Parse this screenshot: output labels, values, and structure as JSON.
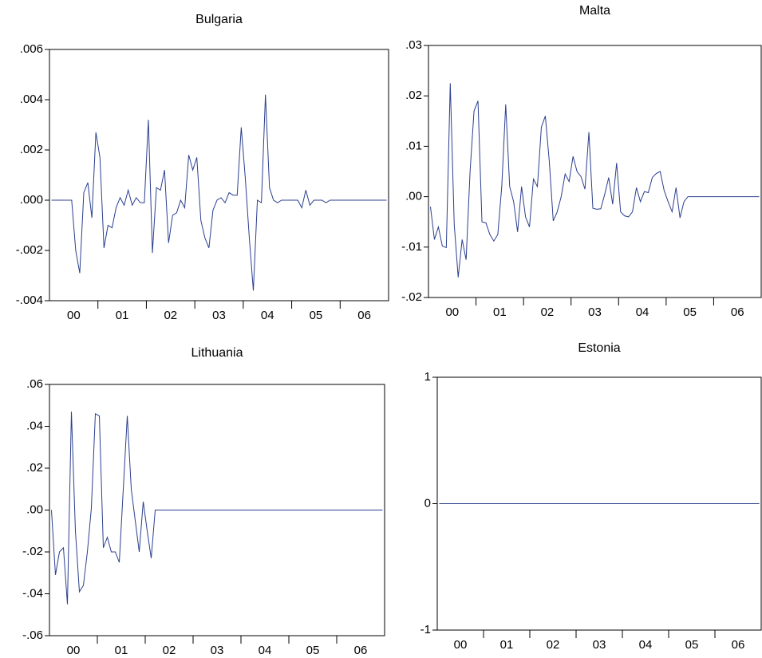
{
  "chart_data": [
    {
      "type": "line",
      "title": "Bulgaria",
      "categories": [
        null,
        null,
        null,
        null,
        null,
        null,
        "00",
        null,
        null,
        null,
        null,
        null,
        null,
        null,
        null,
        null,
        null,
        null,
        "01",
        null,
        null,
        null,
        null,
        null,
        null,
        null,
        null,
        null,
        null,
        null,
        "02",
        null,
        null,
        null,
        null,
        null,
        null,
        null,
        null,
        null,
        null,
        null,
        "03",
        null,
        null,
        null,
        null,
        null,
        null,
        null,
        null,
        null,
        null,
        null,
        "04",
        null,
        null,
        null,
        null,
        null,
        null,
        null,
        null,
        null,
        null,
        null,
        "05",
        null,
        null,
        null,
        null,
        null,
        null,
        null,
        null,
        null,
        null,
        null,
        "06",
        null,
        null,
        null,
        null,
        null
      ],
      "series": [
        {
          "color": "#2b3f8f",
          "values": [
            0,
            0,
            0,
            0,
            0,
            0,
            -0.002,
            -0.0029,
            0.0003,
            0.0007,
            -0.0007,
            0.0027,
            0.0017,
            -0.0019,
            -0.001,
            -0.0011,
            -0.0003,
            0.0001,
            -0.0002,
            0.0004,
            -0.0002,
            0.0001,
            -0.0001,
            -0.0001,
            0.0032,
            -0.0021,
            0.0005,
            0.0004,
            0.0012,
            -0.0017,
            -0.0006,
            -0.0005,
            0,
            -0.0003,
            0.0018,
            0.0012,
            0.0017,
            -0.0008,
            -0.0015,
            -0.0019,
            -0.0004,
            0,
            0.0001,
            -0.0001,
            0.0003,
            0.0002,
            0.0002,
            0.0029,
            0.0009,
            -0.0015,
            -0.0036,
            0,
            -0.0001,
            0.0042,
            0.0005,
            0,
            -0.0001,
            0,
            0,
            0,
            0,
            0,
            -0.0003,
            0.0004,
            -0.0002,
            0,
            0,
            0,
            -0.0001,
            0,
            0,
            0,
            0,
            0,
            0,
            0,
            0,
            0,
            0,
            0,
            0,
            0,
            0,
            0
          ]
        }
      ],
      "ylim": [
        -0.004,
        0.006
      ],
      "yticks": [
        {
          "value": -0.004,
          "label": "-.004"
        },
        {
          "value": -0.002,
          "label": "-.002"
        },
        {
          "value": 0,
          "label": ".000"
        },
        {
          "value": 0.002,
          "label": ".002"
        },
        {
          "value": 0.004,
          "label": ".004"
        },
        {
          "value": 0.006,
          "label": ".006"
        }
      ]
    },
    {
      "type": "line",
      "title": "Malta",
      "categories": [
        null,
        null,
        null,
        null,
        null,
        null,
        "00",
        null,
        null,
        null,
        null,
        null,
        null,
        null,
        null,
        null,
        null,
        null,
        "01",
        null,
        null,
        null,
        null,
        null,
        null,
        null,
        null,
        null,
        null,
        null,
        "02",
        null,
        null,
        null,
        null,
        null,
        null,
        null,
        null,
        null,
        null,
        null,
        "03",
        null,
        null,
        null,
        null,
        null,
        null,
        null,
        null,
        null,
        null,
        null,
        "04",
        null,
        null,
        null,
        null,
        null,
        null,
        null,
        null,
        null,
        null,
        null,
        "05",
        null,
        null,
        null,
        null,
        null,
        null,
        null,
        null,
        null,
        null,
        null,
        "06",
        null,
        null,
        null,
        null,
        null
      ],
      "series": [
        {
          "color": "#2b3f8f",
          "values": [
            -0.002,
            -0.0085,
            -0.006,
            -0.0098,
            -0.0101,
            0.0225,
            -0.0055,
            -0.016,
            -0.0085,
            -0.0125,
            0.005,
            0.017,
            0.019,
            -0.005,
            -0.0052,
            -0.0075,
            -0.0088,
            -0.0075,
            0.002,
            0.0183,
            0.002,
            -0.001,
            -0.007,
            0.002,
            -0.004,
            -0.006,
            0.0035,
            0.002,
            0.0138,
            0.016,
            0.007,
            -0.0048,
            -0.003,
            0,
            0.0045,
            0.003,
            0.008,
            0.005,
            0.004,
            0.0015,
            0.0128,
            -0.0023,
            -0.0025,
            -0.0024,
            0.0005,
            0.0038,
            -0.0015,
            0.0067,
            -0.003,
            -0.0038,
            -0.004,
            -0.003,
            0.0018,
            -0.001,
            0.001,
            0.0008,
            0.0038,
            0.0046,
            0.005,
            0.0012,
            -0.001,
            -0.003,
            0.0018,
            -0.0042,
            -0.001,
            0,
            0,
            0,
            0,
            0,
            0,
            0,
            0,
            0,
            0,
            0,
            0,
            0,
            0,
            0,
            0,
            0,
            0,
            0
          ]
        }
      ],
      "ylim": [
        -0.02,
        0.03
      ],
      "yticks": [
        {
          "value": -0.02,
          "label": "-.02"
        },
        {
          "value": -0.01,
          "label": "-.01"
        },
        {
          "value": 0,
          "label": ".00"
        },
        {
          "value": 0.01,
          "label": ".01"
        },
        {
          "value": 0.02,
          "label": ".02"
        },
        {
          "value": 0.03,
          "label": ".03"
        }
      ]
    },
    {
      "type": "line",
      "title": "Lithuania",
      "categories": [
        null,
        null,
        null,
        null,
        null,
        null,
        "00",
        null,
        null,
        null,
        null,
        null,
        null,
        null,
        null,
        null,
        null,
        null,
        "01",
        null,
        null,
        null,
        null,
        null,
        null,
        null,
        null,
        null,
        null,
        null,
        "02",
        null,
        null,
        null,
        null,
        null,
        null,
        null,
        null,
        null,
        null,
        null,
        "03",
        null,
        null,
        null,
        null,
        null,
        null,
        null,
        null,
        null,
        null,
        null,
        "04",
        null,
        null,
        null,
        null,
        null,
        null,
        null,
        null,
        null,
        null,
        null,
        "05",
        null,
        null,
        null,
        null,
        null,
        null,
        null,
        null,
        null,
        null,
        null,
        "06",
        null,
        null,
        null,
        null,
        null
      ],
      "series": [
        {
          "color": "#2b3f8f",
          "values": [
            0,
            -0.031,
            -0.02,
            -0.018,
            -0.045,
            0.047,
            -0.01,
            -0.039,
            -0.036,
            -0.02,
            0.001,
            0.046,
            0.045,
            -0.018,
            -0.013,
            -0.02,
            -0.02,
            -0.025,
            0.01,
            0.045,
            0.01,
            -0.005,
            -0.02,
            0.004,
            -0.01,
            -0.023,
            0,
            0,
            0,
            0,
            0,
            0,
            0,
            0,
            0,
            0,
            0,
            0,
            0,
            0,
            0,
            0,
            0,
            0,
            0,
            0,
            0,
            0,
            0,
            0,
            0,
            0,
            0,
            0,
            0,
            0,
            0,
            0,
            0,
            0,
            0,
            0,
            0,
            0,
            0,
            0,
            0,
            0,
            0,
            0,
            0,
            0,
            0,
            0,
            0,
            0,
            0,
            0,
            0,
            0,
            0,
            0,
            0,
            0
          ]
        }
      ],
      "ylim": [
        -0.06,
        0.06
      ],
      "yticks": [
        {
          "value": -0.06,
          "label": "-.06"
        },
        {
          "value": -0.04,
          "label": "-.04"
        },
        {
          "value": -0.02,
          "label": "-.02"
        },
        {
          "value": 0,
          "label": ".00"
        },
        {
          "value": 0.02,
          "label": ".02"
        },
        {
          "value": 0.04,
          "label": ".04"
        },
        {
          "value": 0.06,
          "label": ".06"
        }
      ]
    },
    {
      "type": "line",
      "title": "Estonia",
      "categories": [
        null,
        null,
        null,
        null,
        null,
        null,
        "00",
        null,
        null,
        null,
        null,
        null,
        null,
        null,
        null,
        null,
        null,
        null,
        "01",
        null,
        null,
        null,
        null,
        null,
        null,
        null,
        null,
        null,
        null,
        null,
        "02",
        null,
        null,
        null,
        null,
        null,
        null,
        null,
        null,
        null,
        null,
        null,
        "03",
        null,
        null,
        null,
        null,
        null,
        null,
        null,
        null,
        null,
        null,
        null,
        "04",
        null,
        null,
        null,
        null,
        null,
        null,
        null,
        null,
        null,
        null,
        null,
        "05",
        null,
        null,
        null,
        null,
        null,
        null,
        null,
        null,
        null,
        null,
        null,
        "06",
        null,
        null,
        null,
        null,
        null
      ],
      "series": [
        {
          "color": "#2b3f8f",
          "values": [
            0,
            0,
            0,
            0,
            0,
            0,
            0,
            0,
            0,
            0,
            0,
            0,
            0,
            0,
            0,
            0,
            0,
            0,
            0,
            0,
            0,
            0,
            0,
            0,
            0,
            0,
            0,
            0,
            0,
            0,
            0,
            0,
            0,
            0,
            0,
            0,
            0,
            0,
            0,
            0,
            0,
            0,
            0,
            0,
            0,
            0,
            0,
            0,
            0,
            0,
            0,
            0,
            0,
            0,
            0,
            0,
            0,
            0,
            0,
            0,
            0,
            0,
            0,
            0,
            0,
            0,
            0,
            0,
            0,
            0,
            0,
            0,
            0,
            0,
            0,
            0,
            0,
            0,
            0,
            0,
            0,
            0,
            0,
            0
          ]
        }
      ],
      "ylim": [
        -1,
        1
      ],
      "yticks": [
        -1,
        0,
        1
      ]
    }
  ]
}
